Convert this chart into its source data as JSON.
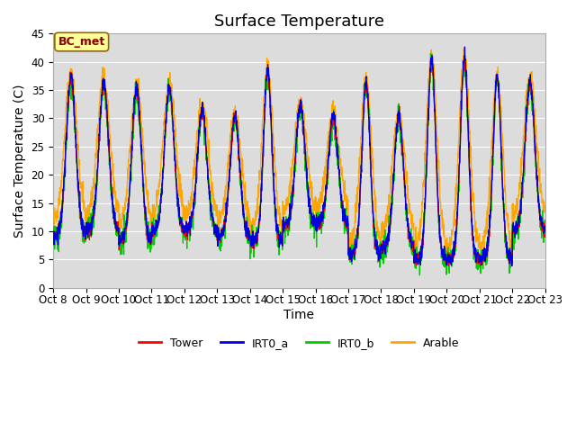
{
  "title": "Surface Temperature",
  "ylabel": "Surface Temperature (C)",
  "xlabel": "Time",
  "ylim": [
    0,
    45
  ],
  "yticks": [
    0,
    5,
    10,
    15,
    20,
    25,
    30,
    35,
    40,
    45
  ],
  "xtick_labels": [
    "Oct 8",
    "Oct 9",
    "Oct 10",
    "Oct 11",
    "Oct 12",
    "Oct 13",
    "Oct 14",
    "Oct 15",
    "Oct 16",
    "Oct 17",
    "Oct 18",
    "Oct 19",
    "Oct 20",
    "Oct 21",
    "Oct 22",
    "Oct 23"
  ],
  "line_colors": {
    "Tower": "#ff0000",
    "IRT0_a": "#0000dd",
    "IRT0_b": "#00cc00",
    "Arable": "#ffa500"
  },
  "annotation_text": "BC_met",
  "annotation_color": "#8b0000",
  "annotation_bg": "#ffff99",
  "plot_bg": "#dcdcdc",
  "fig_bg": "#ffffff",
  "title_fontsize": 13,
  "label_fontsize": 10,
  "tick_fontsize": 8.5,
  "legend_fontsize": 9
}
